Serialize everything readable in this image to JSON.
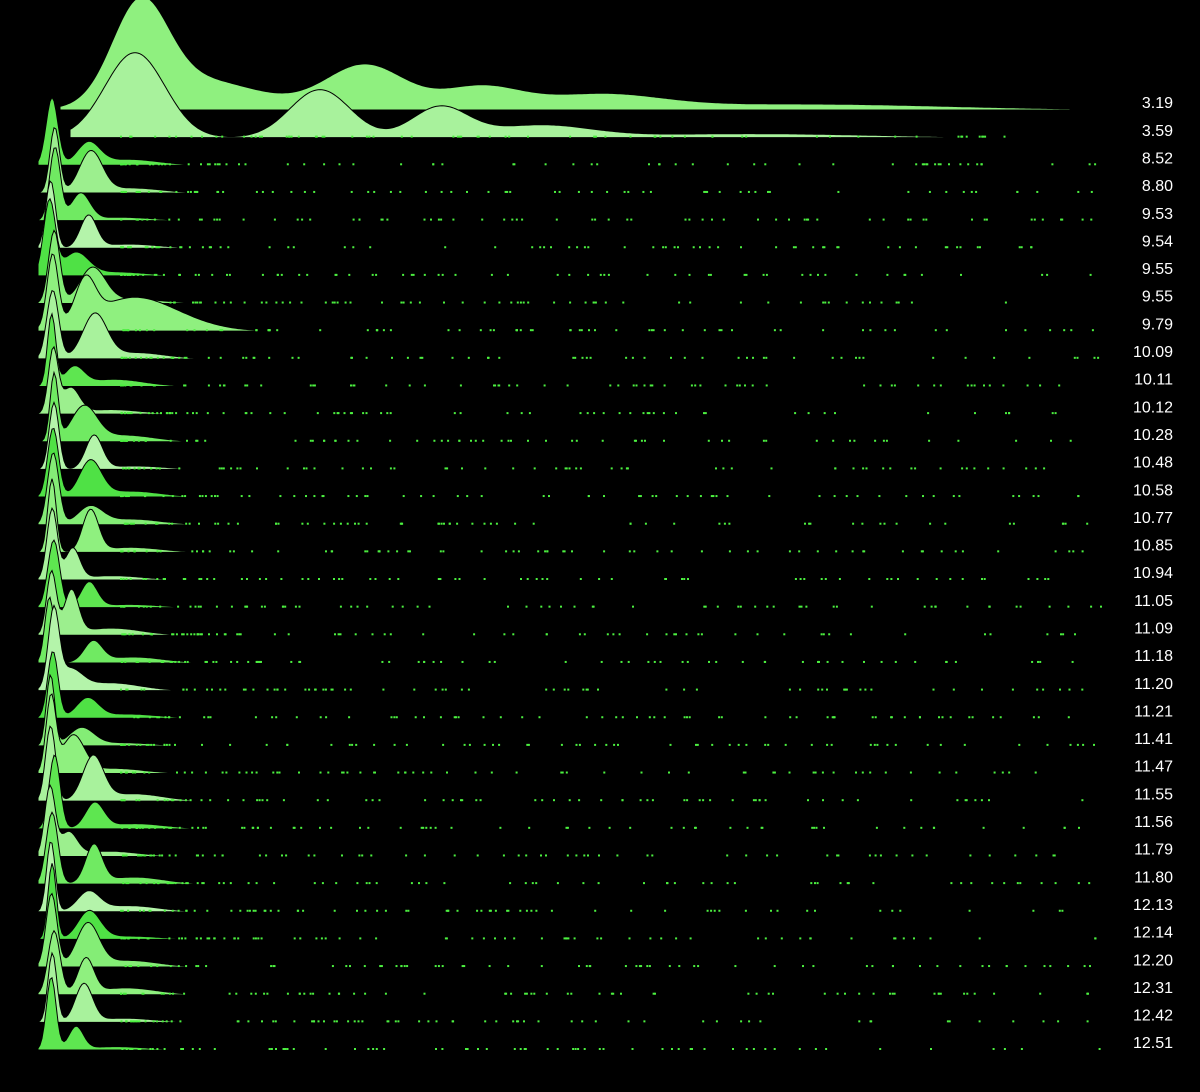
{
  "chart_data": {
    "type": "ridgeline",
    "categories": [
      "3.19",
      "3.59",
      "8.52",
      "8.80",
      "9.53",
      "9.54",
      "9.55",
      "9.55",
      "9.79",
      "10.09",
      "10.11",
      "10.12",
      "10.28",
      "10.48",
      "10.58",
      "10.77",
      "10.85",
      "10.94",
      "11.05",
      "11.09",
      "11.18",
      "11.20",
      "11.21",
      "11.41",
      "11.47",
      "11.55",
      "11.56",
      "11.79",
      "11.80",
      "12.13",
      "12.14",
      "12.20",
      "12.31",
      "12.42",
      "12.51"
    ],
    "colors": [
      "#8ff07f",
      "#a8f29c",
      "#5ee650",
      "#9cef8e",
      "#70ea62",
      "#b4f4aa",
      "#4fe145",
      "#84ed76"
    ]
  }
}
